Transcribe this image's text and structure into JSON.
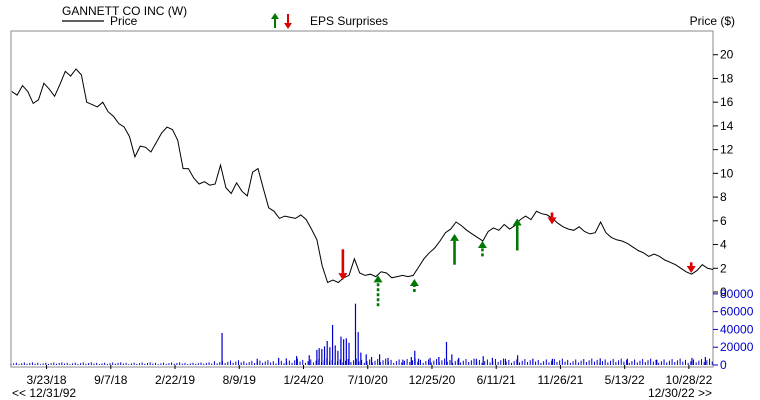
{
  "header": {
    "company": "GANNETT CO INC (W)",
    "price_legend": "Price",
    "eps_legend": "EPS Surprises",
    "price_axis_label": "Price ($)"
  },
  "footer": {
    "range_start": "<< 12/31/92",
    "range_end": "12/30/22 >>"
  },
  "colors": {
    "line": "#000000",
    "volume": "#0000cc",
    "beat": "#007700",
    "miss": "#dd0000",
    "frame": "#888888"
  },
  "chart_data": [
    {
      "type": "line",
      "title": "GANNETT CO INC (W)",
      "ylabel": "Price ($)",
      "ylim": [
        0,
        22
      ],
      "y_ticks": [
        "0",
        "2",
        "4",
        "6",
        "8",
        "10",
        "12",
        "14",
        "16",
        "18",
        "20"
      ],
      "x_ticks": [
        "3/23/18",
        "9/7/18",
        "2/22/19",
        "8/9/19",
        "1/24/20",
        "7/10/20",
        "12/25/20",
        "6/11/21",
        "11/26/21",
        "5/13/22",
        "10/28/22"
      ],
      "x_range": [
        "2017-12-20",
        "2022-12-30"
      ],
      "grid": false,
      "series": [
        {
          "name": "Price",
          "points": [
            [
              "2017-12-22",
              16.9
            ],
            [
              "2018-01-05",
              16.6
            ],
            [
              "2018-01-19",
              17.4
            ],
            [
              "2018-02-02",
              16.9
            ],
            [
              "2018-02-16",
              15.9
            ],
            [
              "2018-03-02",
              16.2
            ],
            [
              "2018-03-16",
              17.6
            ],
            [
              "2018-03-30",
              17.1
            ],
            [
              "2018-04-13",
              16.5
            ],
            [
              "2018-04-27",
              17.5
            ],
            [
              "2018-05-11",
              18.6
            ],
            [
              "2018-05-25",
              18.2
            ],
            [
              "2018-06-08",
              18.8
            ],
            [
              "2018-06-22",
              18.3
            ],
            [
              "2018-07-06",
              16.0
            ],
            [
              "2018-07-20",
              15.8
            ],
            [
              "2018-08-03",
              15.6
            ],
            [
              "2018-08-17",
              16.0
            ],
            [
              "2018-08-31",
              15.2
            ],
            [
              "2018-09-14",
              14.8
            ],
            [
              "2018-09-28",
              14.2
            ],
            [
              "2018-10-12",
              13.9
            ],
            [
              "2018-10-26",
              13.1
            ],
            [
              "2018-11-09",
              11.4
            ],
            [
              "2018-11-23",
              12.3
            ],
            [
              "2018-12-07",
              12.2
            ],
            [
              "2018-12-21",
              11.8
            ],
            [
              "2019-01-04",
              12.6
            ],
            [
              "2019-01-18",
              13.4
            ],
            [
              "2019-02-01",
              13.9
            ],
            [
              "2019-02-15",
              13.7
            ],
            [
              "2019-03-01",
              12.8
            ],
            [
              "2019-03-15",
              10.4
            ],
            [
              "2019-03-29",
              10.4
            ],
            [
              "2019-04-12",
              9.6
            ],
            [
              "2019-04-26",
              9.1
            ],
            [
              "2019-05-10",
              9.3
            ],
            [
              "2019-05-24",
              9.0
            ],
            [
              "2019-06-07",
              9.1
            ],
            [
              "2019-06-21",
              10.7
            ],
            [
              "2019-07-05",
              8.8
            ],
            [
              "2019-07-19",
              8.3
            ],
            [
              "2019-08-02",
              9.2
            ],
            [
              "2019-08-16",
              8.5
            ],
            [
              "2019-08-30",
              8.1
            ],
            [
              "2019-09-13",
              10.1
            ],
            [
              "2019-09-27",
              10.4
            ],
            [
              "2019-10-11",
              8.7
            ],
            [
              "2019-10-25",
              7.1
            ],
            [
              "2019-11-08",
              6.8
            ],
            [
              "2019-11-22",
              6.2
            ],
            [
              "2019-12-06",
              6.4
            ],
            [
              "2019-12-20",
              6.3
            ],
            [
              "2020-01-03",
              6.2
            ],
            [
              "2020-01-17",
              6.5
            ],
            [
              "2020-01-31",
              6.1
            ],
            [
              "2020-02-14",
              5.3
            ],
            [
              "2020-02-28",
              4.4
            ],
            [
              "2020-03-13",
              2.2
            ],
            [
              "2020-03-27",
              0.8
            ],
            [
              "2020-04-10",
              1.0
            ],
            [
              "2020-04-24",
              0.8
            ],
            [
              "2020-05-08",
              1.2
            ],
            [
              "2020-05-22",
              1.4
            ],
            [
              "2020-06-05",
              2.8
            ],
            [
              "2020-06-19",
              1.6
            ],
            [
              "2020-07-03",
              1.4
            ],
            [
              "2020-07-17",
              1.5
            ],
            [
              "2020-07-31",
              1.3
            ],
            [
              "2020-08-14",
              1.7
            ],
            [
              "2020-08-28",
              1.6
            ],
            [
              "2020-09-11",
              1.2
            ],
            [
              "2020-09-25",
              1.3
            ],
            [
              "2020-10-09",
              1.4
            ],
            [
              "2020-10-23",
              1.3
            ],
            [
              "2020-11-06",
              1.4
            ],
            [
              "2020-11-20",
              2.1
            ],
            [
              "2020-12-04",
              2.8
            ],
            [
              "2020-12-18",
              3.3
            ],
            [
              "2021-01-01",
              3.7
            ],
            [
              "2021-01-15",
              4.3
            ],
            [
              "2021-01-29",
              5.0
            ],
            [
              "2021-02-12",
              5.3
            ],
            [
              "2021-02-26",
              5.9
            ],
            [
              "2021-03-12",
              5.6
            ],
            [
              "2021-03-26",
              5.2
            ],
            [
              "2021-04-09",
              4.9
            ],
            [
              "2021-04-23",
              4.6
            ],
            [
              "2021-05-07",
              4.3
            ],
            [
              "2021-05-21",
              5.1
            ],
            [
              "2021-06-04",
              5.4
            ],
            [
              "2021-06-18",
              5.2
            ],
            [
              "2021-07-02",
              5.7
            ],
            [
              "2021-07-16",
              5.3
            ],
            [
              "2021-07-30",
              5.6
            ],
            [
              "2021-08-13",
              6.1
            ],
            [
              "2021-08-27",
              6.4
            ],
            [
              "2021-09-10",
              6.1
            ],
            [
              "2021-09-24",
              6.8
            ],
            [
              "2021-10-08",
              6.6
            ],
            [
              "2021-10-22",
              6.5
            ],
            [
              "2021-11-05",
              6.2
            ],
            [
              "2021-11-19",
              5.8
            ],
            [
              "2021-12-03",
              5.5
            ],
            [
              "2021-12-17",
              5.3
            ],
            [
              "2021-12-31",
              5.2
            ],
            [
              "2022-01-14",
              5.5
            ],
            [
              "2022-01-28",
              5.1
            ],
            [
              "2022-02-11",
              4.9
            ],
            [
              "2022-02-25",
              5.0
            ],
            [
              "2022-03-11",
              5.9
            ],
            [
              "2022-03-25",
              5.0
            ],
            [
              "2022-04-08",
              4.6
            ],
            [
              "2022-04-22",
              4.4
            ],
            [
              "2022-05-06",
              4.3
            ],
            [
              "2022-05-20",
              4.1
            ],
            [
              "2022-06-03",
              3.8
            ],
            [
              "2022-06-17",
              3.5
            ],
            [
              "2022-07-01",
              3.3
            ],
            [
              "2022-07-15",
              3.0
            ],
            [
              "2022-07-29",
              3.2
            ],
            [
              "2022-08-12",
              3.0
            ],
            [
              "2022-08-26",
              2.7
            ],
            [
              "2022-09-09",
              2.5
            ],
            [
              "2022-09-23",
              2.3
            ],
            [
              "2022-10-07",
              2.0
            ],
            [
              "2022-10-21",
              1.7
            ],
            [
              "2022-11-04",
              1.5
            ],
            [
              "2022-11-18",
              1.8
            ],
            [
              "2022-12-02",
              2.3
            ],
            [
              "2022-12-16",
              2.0
            ],
            [
              "2022-12-30",
              1.9
            ]
          ]
        }
      ],
      "eps_surprises": [
        {
          "date": "2020-05-06",
          "direction": "down",
          "size": "large",
          "style": "solid",
          "from": 3.6,
          "to": 1.0
        },
        {
          "date": "2020-08-06",
          "direction": "up",
          "size": "large",
          "style": "dotted",
          "from": -1.2,
          "to": 1.4
        },
        {
          "date": "2020-11-09",
          "direction": "up",
          "size": "small",
          "style": "dotted",
          "from": 0.0,
          "to": 1.1
        },
        {
          "date": "2021-02-22",
          "direction": "up",
          "size": "large",
          "style": "solid",
          "from": 2.3,
          "to": 4.9
        },
        {
          "date": "2021-05-06",
          "direction": "up",
          "size": "small",
          "style": "dotted",
          "from": 3.0,
          "to": 4.3
        },
        {
          "date": "2021-08-05",
          "direction": "up",
          "size": "large",
          "style": "solid",
          "from": 3.5,
          "to": 6.2
        },
        {
          "date": "2021-11-04",
          "direction": "down",
          "size": "small",
          "style": "solid",
          "from": 6.7,
          "to": 5.7
        },
        {
          "date": "2022-11-03",
          "direction": "down",
          "size": "small",
          "style": "solid",
          "from": 2.5,
          "to": 1.6
        }
      ]
    },
    {
      "type": "bar",
      "ylim": [
        0,
        90000
      ],
      "y_ticks": [
        "0",
        "20000",
        "40000",
        "60000",
        "80000"
      ],
      "x_range": [
        "2017-12-20",
        "2022-12-30"
      ],
      "series": [
        {
          "name": "Volume",
          "baseline": 2000,
          "spikes": [
            [
              "2019-06-25",
              36000
            ],
            [
              "2019-09-25",
              7000
            ],
            [
              "2019-11-20",
              8000
            ],
            [
              "2019-12-10",
              7500
            ],
            [
              "2020-01-06",
              10000
            ],
            [
              "2020-02-08",
              11000
            ],
            [
              "2020-02-28",
              17000
            ],
            [
              "2020-03-05",
              19000
            ],
            [
              "2020-03-12",
              18000
            ],
            [
              "2020-03-19",
              21000
            ],
            [
              "2020-03-26",
              27000
            ],
            [
              "2020-04-02",
              20000
            ],
            [
              "2020-04-09",
              45000
            ],
            [
              "2020-04-16",
              22000
            ],
            [
              "2020-04-23",
              16000
            ],
            [
              "2020-05-01",
              32000
            ],
            [
              "2020-05-08",
              29000
            ],
            [
              "2020-05-15",
              30000
            ],
            [
              "2020-05-22",
              25000
            ],
            [
              "2020-06-08",
              69000
            ],
            [
              "2020-06-15",
              37000
            ],
            [
              "2020-06-22",
              14000
            ],
            [
              "2020-07-06",
              12000
            ],
            [
              "2020-07-20",
              9000
            ],
            [
              "2020-08-10",
              12000
            ],
            [
              "2020-09-01",
              8000
            ],
            [
              "2020-10-10",
              6000
            ],
            [
              "2020-11-01",
              9000
            ],
            [
              "2020-11-10",
              16000
            ],
            [
              "2020-11-20",
              7000
            ],
            [
              "2020-12-20",
              8000
            ],
            [
              "2021-01-12",
              9000
            ],
            [
              "2021-02-01",
              26000
            ],
            [
              "2021-02-15",
              12000
            ],
            [
              "2021-03-05",
              8000
            ],
            [
              "2021-04-20",
              7000
            ],
            [
              "2021-05-08",
              10000
            ],
            [
              "2021-06-01",
              8000
            ],
            [
              "2021-07-05",
              7000
            ],
            [
              "2021-08-06",
              11000
            ],
            [
              "2021-09-15",
              6500
            ],
            [
              "2021-11-05",
              7000
            ],
            [
              "2022-03-10",
              7500
            ],
            [
              "2022-05-20",
              7000
            ],
            [
              "2022-08-05",
              6000
            ],
            [
              "2022-11-05",
              8000
            ],
            [
              "2022-12-10",
              9000
            ]
          ]
        }
      ]
    }
  ]
}
